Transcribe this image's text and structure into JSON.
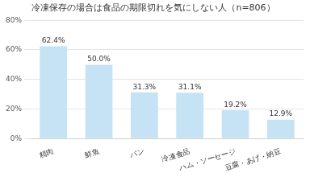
{
  "chart_data": {
    "type": "bar",
    "title": "冷凍保存の場合は食品の期限切れを気にしない人（n=806）",
    "categories": [
      "精肉",
      "鮮魚",
      "パン",
      "冷凍食品",
      "ハム・ソーセージ",
      "豆腐・あげ・納豆"
    ],
    "values": [
      62.4,
      50.0,
      31.3,
      31.1,
      19.2,
      12.9
    ],
    "value_labels": [
      "62.4%",
      "50.0%",
      "31.3%",
      "31.1%",
      "19.2%",
      "12.9%"
    ],
    "color": "#c5e3f5",
    "ylim": [
      0,
      80
    ],
    "yticks": [
      {
        "value": 0,
        "label": "0%"
      },
      {
        "value": 20,
        "label": "20%"
      },
      {
        "value": 40,
        "label": "40%"
      },
      {
        "value": 60,
        "label": "60%"
      },
      {
        "value": 80,
        "label": "80%"
      }
    ],
    "grid": true,
    "data_labels": true
  }
}
